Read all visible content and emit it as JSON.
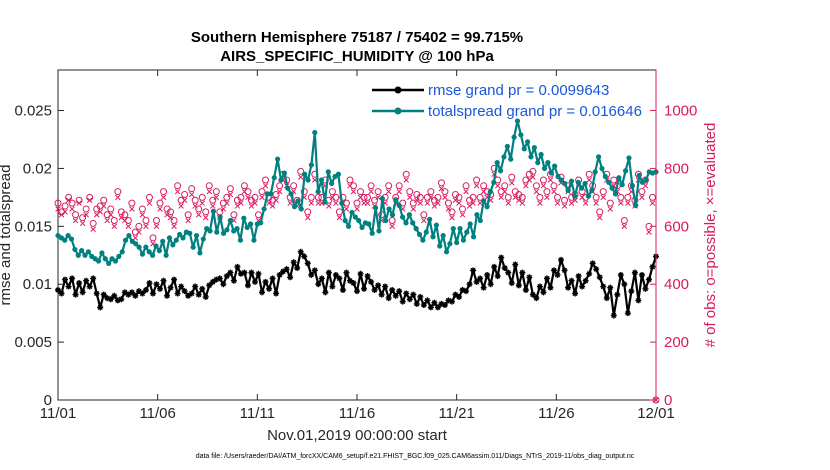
{
  "chart_data": {
    "type": "line",
    "title_line1": "Southern Hemisphere 75187 / 75402 = 99.715%",
    "title_line2": "AIRS_SPECIFIC_HUMIDITY @ 100 hPa",
    "xlabel": "Nov.01,2019 00:00:00 start",
    "ylabel": "rmse and totalspread",
    "y2label": "# of obs: o=possible, ×=evaluated",
    "footnote": "data file: /Users/raeder/DAI/ATM_forcXX/CAM6_setup/f.e21.FHIST_BGC.f09_025.CAM6assim.011/Diags_NTrS_2019-11/obs_diag_output.nc",
    "x_tick_labels": [
      "11/01",
      "11/06",
      "11/11",
      "11/16",
      "11/21",
      "11/26",
      "12/01"
    ],
    "y_tick_labels": [
      "0",
      "0.005",
      "0.01",
      "0.015",
      "0.02",
      "0.025"
    ],
    "y2_tick_labels": [
      "0",
      "200",
      "400",
      "600",
      "800",
      "1000"
    ],
    "xlim": [
      0,
      30
    ],
    "ylim": [
      0,
      0.0285
    ],
    "y2lim": [
      0,
      1140
    ],
    "y_ticks": [
      0,
      0.005,
      0.01,
      0.015,
      0.02,
      0.025
    ],
    "y2_ticks": [
      0,
      200,
      400,
      600,
      800,
      1000
    ],
    "x_ticks": [
      0,
      5,
      10,
      15,
      20,
      25,
      30
    ],
    "series": [
      {
        "name": "rmse grand pr = 0.0099643",
        "color": "#000000",
        "marker": "asterisk",
        "values": [
          0.0095,
          0.0092,
          0.0104,
          0.0098,
          0.0105,
          0.0091,
          0.0101,
          0.0093,
          0.0103,
          0.0098,
          0.0105,
          0.0092,
          0.008,
          0.0091,
          0.0088,
          0.0087,
          0.009,
          0.0086,
          0.0087,
          0.0093,
          0.0091,
          0.0093,
          0.009,
          0.0094,
          0.0092,
          0.0095,
          0.0101,
          0.0092,
          0.01,
          0.0096,
          0.0103,
          0.009,
          0.0097,
          0.0104,
          0.0092,
          0.0098,
          0.0094,
          0.009,
          0.0092,
          0.0098,
          0.0091,
          0.0096,
          0.0089,
          0.0099,
          0.0102,
          0.0104,
          0.0105,
          0.01,
          0.0107,
          0.011,
          0.0103,
          0.0115,
          0.0109,
          0.011,
          0.0099,
          0.011,
          0.0102,
          0.0109,
          0.0093,
          0.0102,
          0.0096,
          0.0105,
          0.0092,
          0.0108,
          0.0111,
          0.0113,
          0.0106,
          0.0119,
          0.0114,
          0.0128,
          0.0124,
          0.0118,
          0.0108,
          0.0112,
          0.01,
          0.0105,
          0.0093,
          0.011,
          0.0098,
          0.0108,
          0.0105,
          0.0095,
          0.011,
          0.0103,
          0.0101,
          0.0094,
          0.0109,
          0.0096,
          0.0107,
          0.0102,
          0.0095,
          0.0099,
          0.0091,
          0.0098,
          0.0088,
          0.0095,
          0.009,
          0.0094,
          0.0085,
          0.0092,
          0.0087,
          0.0091,
          0.0083,
          0.0089,
          0.0082,
          0.0086,
          0.008,
          0.0084,
          0.008,
          0.0083,
          0.0082,
          0.0086,
          0.0085,
          0.0091,
          0.0089,
          0.0095,
          0.0094,
          0.01,
          0.0112,
          0.0102,
          0.0105,
          0.0097,
          0.0108,
          0.01,
          0.0115,
          0.0107,
          0.0123,
          0.0114,
          0.011,
          0.0101,
          0.0117,
          0.0099,
          0.011,
          0.0095,
          0.0106,
          0.0091,
          0.0088,
          0.0098,
          0.0093,
          0.0105,
          0.0097,
          0.0112,
          0.0108,
          0.0121,
          0.0112,
          0.0097,
          0.0103,
          0.0092,
          0.0107,
          0.0098,
          0.0103,
          0.0109,
          0.0118,
          0.0113,
          0.0106,
          0.0098,
          0.0088,
          0.0097,
          0.0073,
          0.0091,
          0.0108,
          0.01,
          0.0075,
          0.0094,
          0.011,
          0.0086,
          0.0108,
          0.0096,
          0.0104,
          0.0115,
          0.0124
        ]
      },
      {
        "name": "totalspread grand pr = 0.016646",
        "color": "#008080",
        "marker": "dot",
        "values": [
          0.0142,
          0.014,
          0.0138,
          0.0142,
          0.0139,
          0.013,
          0.0125,
          0.0129,
          0.0125,
          0.0128,
          0.0124,
          0.0122,
          0.012,
          0.0127,
          0.0122,
          0.0118,
          0.0122,
          0.012,
          0.0124,
          0.0128,
          0.0138,
          0.0142,
          0.0137,
          0.0135,
          0.0132,
          0.0126,
          0.0132,
          0.0128,
          0.0125,
          0.0133,
          0.0129,
          0.0137,
          0.0125,
          0.014,
          0.0134,
          0.0138,
          0.0143,
          0.014,
          0.0145,
          0.0144,
          0.0132,
          0.0142,
          0.0127,
          0.0139,
          0.0148,
          0.0146,
          0.0163,
          0.0145,
          0.0158,
          0.0144,
          0.0147,
          0.0155,
          0.0146,
          0.0148,
          0.0138,
          0.0157,
          0.0149,
          0.0152,
          0.0138,
          0.0152,
          0.0153,
          0.0165,
          0.0178,
          0.0178,
          0.0192,
          0.0208,
          0.019,
          0.0196,
          0.0183,
          0.0178,
          0.0167,
          0.0172,
          0.0165,
          0.0195,
          0.019,
          0.0203,
          0.0231,
          0.018,
          0.019,
          0.0171,
          0.0197,
          0.0187,
          0.0193,
          0.0195,
          0.017,
          0.0155,
          0.015,
          0.0162,
          0.0158,
          0.0155,
          0.0149,
          0.0153,
          0.0152,
          0.0144,
          0.0166,
          0.0146,
          0.0174,
          0.0155,
          0.0165,
          0.016,
          0.0173,
          0.0168,
          0.0158,
          0.0153,
          0.016,
          0.0153,
          0.0148,
          0.0143,
          0.0138,
          0.0145,
          0.0156,
          0.0141,
          0.0151,
          0.0133,
          0.0142,
          0.0128,
          0.0135,
          0.0148,
          0.0136,
          0.0148,
          0.0138,
          0.0145,
          0.0152,
          0.0141,
          0.016,
          0.0155,
          0.0172,
          0.0167,
          0.018,
          0.0188,
          0.0205,
          0.0198,
          0.021,
          0.0219,
          0.0208,
          0.0227,
          0.0241,
          0.0229,
          0.0217,
          0.0223,
          0.021,
          0.0218,
          0.0205,
          0.0212,
          0.02,
          0.0205,
          0.0196,
          0.0202,
          0.0193,
          0.019,
          0.0187,
          0.0181,
          0.0189,
          0.0176,
          0.0188,
          0.0183,
          0.0187,
          0.0176,
          0.0181,
          0.0197,
          0.021,
          0.02,
          0.0193,
          0.0188,
          0.0183,
          0.0178,
          0.0192,
          0.0186,
          0.0198,
          0.0209,
          0.0185,
          0.0168,
          0.0194,
          0.0188,
          0.019,
          0.0197,
          0.0196,
          0.0197
        ]
      }
    ],
    "obs_possible": [
      680,
      650,
      670,
      700,
      680,
      640,
      690,
      630,
      660,
      700,
      610,
      660,
      670,
      690,
      640,
      660,
      620,
      720,
      650,
      640,
      620,
      680,
      580,
      600,
      660,
      620,
      700,
      560,
      620,
      680,
      720,
      660,
      650,
      620,
      740,
      690,
      710,
      640,
      730,
      690,
      660,
      700,
      650,
      740,
      690,
      720,
      650,
      680,
      700,
      730,
      640,
      690,
      700,
      740,
      720,
      690,
      700,
      640,
      720,
      760,
      700,
      690,
      710,
      740,
      780,
      760,
      700,
      740,
      690,
      790,
      720,
      650,
      700,
      780,
      700,
      700,
      760,
      690,
      720,
      700,
      650,
      700,
      680,
      760,
      740,
      680,
      720,
      700,
      700,
      740,
      690,
      720,
      640,
      700,
      740,
      620,
      700,
      740,
      680,
      780,
      720,
      680,
      710,
      700,
      640,
      700,
      720,
      690,
      700,
      750,
      720,
      680,
      650,
      710,
      700,
      660,
      740,
      690,
      700,
      760,
      700,
      740,
      720,
      710,
      800,
      760,
      720,
      740,
      700,
      770,
      720,
      710,
      700,
      760,
      780,
      790,
      740,
      700,
      760,
      720,
      780,
      740,
      700,
      770,
      690,
      740,
      700,
      710,
      760,
      720,
      700,
      780,
      740,
      700,
      650,
      720,
      780,
      680,
      760,
      740,
      700,
      620,
      700,
      740,
      690,
      780,
      720,
      760,
      600,
      700,
      0
    ],
    "obs_evaluated": [
      660,
      640,
      650,
      690,
      660,
      620,
      680,
      610,
      640,
      690,
      590,
      640,
      650,
      670,
      620,
      640,
      600,
      700,
      630,
      620,
      600,
      660,
      560,
      580,
      640,
      600,
      680,
      540,
      600,
      660,
      700,
      640,
      630,
      600,
      720,
      670,
      690,
      620,
      710,
      670,
      640,
      680,
      630,
      720,
      670,
      700,
      630,
      660,
      680,
      710,
      620,
      670,
      680,
      720,
      700,
      670,
      680,
      620,
      700,
      740,
      680,
      670,
      690,
      720,
      760,
      740,
      680,
      720,
      670,
      770,
      700,
      630,
      680,
      760,
      680,
      680,
      740,
      670,
      700,
      680,
      630,
      680,
      660,
      740,
      720,
      660,
      700,
      680,
      680,
      720,
      670,
      700,
      620,
      680,
      720,
      600,
      680,
      720,
      660,
      760,
      700,
      660,
      690,
      680,
      620,
      680,
      700,
      670,
      680,
      730,
      700,
      660,
      630,
      690,
      680,
      640,
      720,
      670,
      680,
      740,
      680,
      720,
      700,
      690,
      780,
      740,
      700,
      720,
      680,
      750,
      700,
      690,
      680,
      740,
      760,
      770,
      720,
      680,
      740,
      700,
      760,
      720,
      680,
      750,
      670,
      720,
      680,
      690,
      740,
      700,
      680,
      760,
      720,
      680,
      630,
      700,
      760,
      660,
      740,
      720,
      680,
      600,
      680,
      720,
      670,
      760,
      700,
      740,
      580,
      680,
      0
    ]
  }
}
